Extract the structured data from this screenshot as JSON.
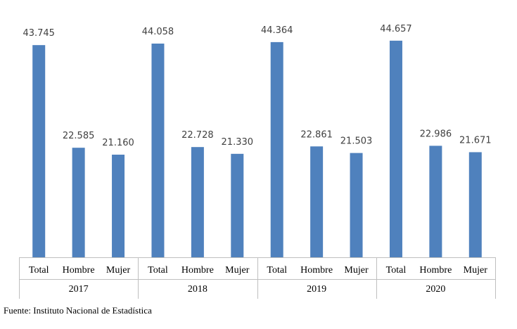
{
  "chart_data": {
    "type": "bar",
    "groups": [
      "2017",
      "2018",
      "2019",
      "2020"
    ],
    "categories": [
      "Total",
      "Hombre",
      "Mujer"
    ],
    "values": [
      [
        43745,
        22585,
        21160
      ],
      [
        44058,
        22728,
        21330
      ],
      [
        44364,
        22861,
        21503
      ],
      [
        44657,
        22986,
        21671
      ]
    ],
    "value_labels": [
      [
        "43.745",
        "22.585",
        "21.160"
      ],
      [
        "44.058",
        "22.728",
        "21.330"
      ],
      [
        "44.364",
        "22.861",
        "21.503"
      ],
      [
        "44.657",
        "22.986",
        "21.671"
      ]
    ],
    "ylim": [
      0,
      50000
    ],
    "grid": false,
    "bar_color": "#4F81BD",
    "axis_color": "#BFBFBF"
  },
  "source": "Fuente: Instituto Nacional de Estadística"
}
